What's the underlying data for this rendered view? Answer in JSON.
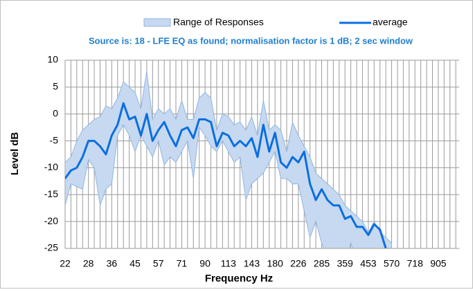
{
  "chart_data": {
    "type": "line",
    "subtitle": "Source is: 18 - LFE EQ as found; normalisation factor is 1 dB; 2 sec window",
    "x_label": "Frequency  Hz",
    "y_label": "Level dB",
    "categories": [
      "22",
      null,
      null,
      null,
      "28",
      null,
      null,
      null,
      "36",
      null,
      null,
      null,
      "45",
      null,
      null,
      null,
      "57",
      null,
      null,
      null,
      "71",
      null,
      null,
      null,
      "90",
      null,
      null,
      null,
      "113",
      null,
      null,
      null,
      "143",
      null,
      null,
      null,
      "180",
      null,
      null,
      null,
      "226",
      null,
      null,
      null,
      "285",
      null,
      null,
      null,
      "359",
      null,
      null,
      null,
      "453",
      null,
      null,
      null,
      "570",
      null,
      null,
      null,
      "718",
      null,
      null,
      null,
      "905",
      null,
      null,
      null
    ],
    "ylim": [
      -25,
      10
    ],
    "yticks": [
      -25,
      -20,
      -15,
      -10,
      -5,
      0,
      5,
      10
    ],
    "grid": true,
    "legend": "top",
    "series": [
      {
        "name": "Range of Responses",
        "color": "#c6d9f0",
        "edge_color": "#8eb4e3",
        "high": [
          -9,
          -8,
          -5,
          -3,
          -2,
          -1,
          -0.5,
          1.5,
          1,
          3,
          6,
          5,
          4,
          1,
          8,
          -1,
          1,
          0,
          1,
          -1,
          2.5,
          -1,
          -1,
          3,
          4,
          3,
          -3,
          0,
          -0.5,
          -2,
          -1.5,
          -3,
          -0.5,
          -4,
          2.5,
          -3,
          -2,
          -3,
          -7,
          -1.5,
          -4,
          -6,
          -8,
          -11,
          -12,
          -13,
          -14,
          -15,
          -17,
          -18,
          -19,
          -20,
          -22,
          -20,
          -22,
          -23,
          -24,
          null,
          null,
          null,
          null,
          null,
          null,
          null,
          null,
          null,
          null,
          null
        ],
        "low": [
          -17,
          -13,
          -13.5,
          -14,
          -8.5,
          -10,
          -17,
          -14,
          -13,
          -4,
          -2,
          -4,
          -7,
          -4,
          -6,
          -8,
          -5,
          -9.5,
          -8,
          -9,
          -7,
          -5,
          -12,
          -2.5,
          -4,
          -6,
          -7,
          -5,
          -7,
          -9,
          -8,
          -16,
          -13,
          -12,
          -11,
          -9,
          -7,
          -12,
          -12,
          -13,
          -13,
          -18,
          -23,
          -20,
          -24,
          -27,
          -28,
          -28,
          -29,
          -24,
          -27,
          -27,
          -28,
          -27,
          -28,
          -29,
          -30,
          null,
          null,
          null,
          null,
          null,
          null,
          null,
          null,
          null,
          null,
          null
        ]
      },
      {
        "name": "average",
        "color": "#0a6ee0",
        "values": [
          -12,
          -10.5,
          -10,
          -8,
          -5,
          -5,
          -6,
          -7.5,
          -4,
          -2,
          2,
          -1,
          -0.5,
          -4,
          0,
          -5,
          -3,
          -1.5,
          -4,
          -6,
          -3,
          -2.5,
          -4.5,
          -1,
          -1,
          -1.5,
          -6,
          -3.5,
          -4,
          -6,
          -5,
          -6,
          -4.5,
          -8,
          -2,
          -7,
          -3.5,
          -9,
          -10,
          -8,
          -9,
          -7,
          -13,
          -16,
          -14,
          -16,
          -17,
          -17,
          -19.5,
          -19,
          -21,
          -21,
          -22.5,
          -20.5,
          -21.5,
          -25,
          -27,
          null,
          null,
          null,
          null,
          null,
          null,
          null,
          null,
          null,
          null,
          null
        ]
      }
    ]
  }
}
